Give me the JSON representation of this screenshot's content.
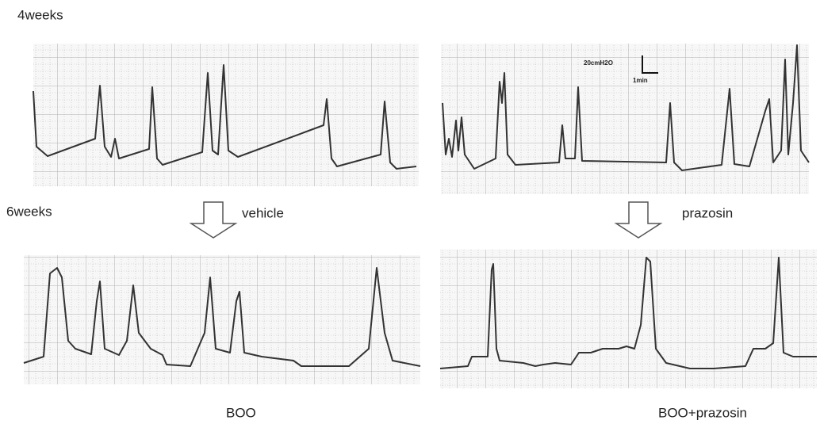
{
  "labels": {
    "top_time": "4weeks",
    "bottom_time": "6weeks",
    "left_treatment": "vehicle",
    "right_treatment": "prazosin",
    "left_group": "BOO",
    "right_group": "BOO+prazosin"
  },
  "scale_bar": {
    "pressure": "20cmH2O",
    "time": "1min"
  }
}
